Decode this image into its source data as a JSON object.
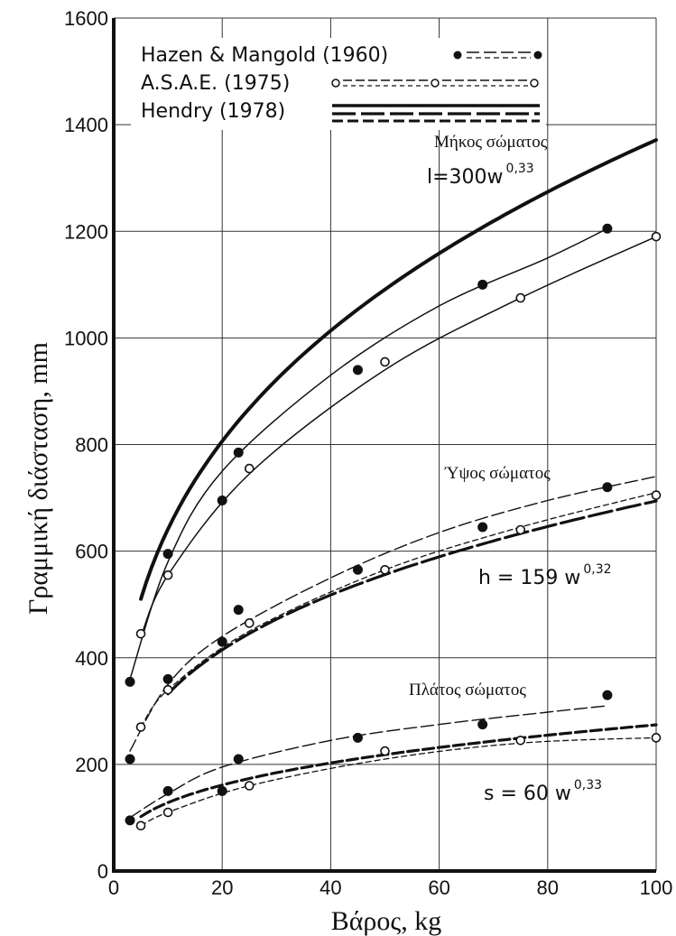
{
  "chart_data": {
    "type": "line",
    "xlabel": "Βάρος, kg",
    "ylabel": "Γραμμική διάσταση, mm",
    "xlim": [
      0,
      100
    ],
    "ylim": [
      0,
      1600
    ],
    "x_ticks": [
      0,
      20,
      40,
      60,
      80,
      100
    ],
    "y_ticks": [
      0,
      200,
      400,
      600,
      800,
      1000,
      1200,
      1400,
      1600
    ],
    "grid": true,
    "legend": {
      "placement": "top-left",
      "entries": [
        {
          "label": "Hazen & Mangold (1960)",
          "marker": "filled-circle",
          "line": "dashed"
        },
        {
          "label": "A.S.A.E. (1975)",
          "marker": "open-circle",
          "line": "dashed"
        },
        {
          "label": "Hendry (1978)",
          "marker": "none",
          "line": "thick"
        }
      ]
    },
    "annotations": [
      {
        "text": "Μήκος σώματος",
        "formula_base": "l=300w",
        "formula_exp": "0,33"
      },
      {
        "text": "Ύψος σώματος",
        "formula_base": "h = 159 w",
        "formula_exp": "0,32"
      },
      {
        "text": "Πλάτος σώματος",
        "formula_base": "s = 60 w",
        "formula_exp": "0,33"
      }
    ],
    "series": [
      {
        "source": "Hendry (1978)",
        "group": "length",
        "style": "hendry",
        "formula": {
          "a": 300,
          "b": 0.33
        },
        "x_range": [
          5,
          100
        ]
      },
      {
        "source": "Hazen & Mangold (1960)",
        "group": "length",
        "style": "hm",
        "points": [
          {
            "x": 3,
            "y": 355
          },
          {
            "x": 10,
            "y": 595
          },
          {
            "x": 20,
            "y": 695
          },
          {
            "x": 23,
            "y": 785
          },
          {
            "x": 45,
            "y": 940
          },
          {
            "x": 68,
            "y": 1100
          },
          {
            "x": 91,
            "y": 1205
          }
        ],
        "curve": [
          {
            "x": 3,
            "y": 360
          },
          {
            "x": 10,
            "y": 580
          },
          {
            "x": 20,
            "y": 750
          },
          {
            "x": 40,
            "y": 930
          },
          {
            "x": 60,
            "y": 1060
          },
          {
            "x": 80,
            "y": 1150
          },
          {
            "x": 91,
            "y": 1205
          }
        ]
      },
      {
        "source": "A.S.A.E. (1975)",
        "group": "length",
        "style": "asae",
        "points": [
          {
            "x": 5,
            "y": 445
          },
          {
            "x": 10,
            "y": 555
          },
          {
            "x": 25,
            "y": 755
          },
          {
            "x": 50,
            "y": 955
          },
          {
            "x": 75,
            "y": 1075
          },
          {
            "x": 100,
            "y": 1190
          }
        ],
        "curve": [
          {
            "x": 5,
            "y": 440
          },
          {
            "x": 10,
            "y": 555
          },
          {
            "x": 25,
            "y": 745
          },
          {
            "x": 50,
            "y": 940
          },
          {
            "x": 75,
            "y": 1075
          },
          {
            "x": 100,
            "y": 1190
          }
        ]
      },
      {
        "source": "Hendry (1978)",
        "group": "height",
        "style": "hendry",
        "formula": {
          "a": 159,
          "b": 0.32
        },
        "x_range": [
          10,
          100
        ]
      },
      {
        "source": "Hazen & Mangold (1960)",
        "group": "height",
        "style": "hm",
        "points": [
          {
            "x": 3,
            "y": 210
          },
          {
            "x": 10,
            "y": 360
          },
          {
            "x": 20,
            "y": 430
          },
          {
            "x": 23,
            "y": 490
          },
          {
            "x": 45,
            "y": 565
          },
          {
            "x": 68,
            "y": 645
          },
          {
            "x": 91,
            "y": 720
          }
        ],
        "curve": [
          {
            "x": 3,
            "y": 225
          },
          {
            "x": 10,
            "y": 350
          },
          {
            "x": 20,
            "y": 440
          },
          {
            "x": 40,
            "y": 550
          },
          {
            "x": 60,
            "y": 635
          },
          {
            "x": 80,
            "y": 695
          },
          {
            "x": 100,
            "y": 740
          }
        ]
      },
      {
        "source": "A.S.A.E. (1975)",
        "group": "height",
        "style": "asae",
        "points": [
          {
            "x": 5,
            "y": 270
          },
          {
            "x": 10,
            "y": 340
          },
          {
            "x": 25,
            "y": 465
          },
          {
            "x": 50,
            "y": 565
          },
          {
            "x": 75,
            "y": 640
          },
          {
            "x": 100,
            "y": 705
          }
        ],
        "curve": [
          {
            "x": 5,
            "y": 270
          },
          {
            "x": 10,
            "y": 340
          },
          {
            "x": 25,
            "y": 450
          },
          {
            "x": 50,
            "y": 565
          },
          {
            "x": 75,
            "y": 645
          },
          {
            "x": 100,
            "y": 710
          }
        ]
      },
      {
        "source": "Hendry (1978)",
        "group": "width",
        "style": "hendry",
        "formula": {
          "a": 60,
          "b": 0.33
        },
        "x_range": [
          5,
          100
        ]
      },
      {
        "source": "Hazen & Mangold (1960)",
        "group": "width",
        "style": "hm",
        "points": [
          {
            "x": 3,
            "y": 95
          },
          {
            "x": 10,
            "y": 150
          },
          {
            "x": 20,
            "y": 150
          },
          {
            "x": 23,
            "y": 210
          },
          {
            "x": 45,
            "y": 250
          },
          {
            "x": 68,
            "y": 275
          },
          {
            "x": 91,
            "y": 330
          }
        ],
        "curve": [
          {
            "x": 3,
            "y": 100
          },
          {
            "x": 10,
            "y": 145
          },
          {
            "x": 20,
            "y": 195
          },
          {
            "x": 40,
            "y": 245
          },
          {
            "x": 60,
            "y": 275
          },
          {
            "x": 80,
            "y": 298
          },
          {
            "x": 91,
            "y": 310
          }
        ]
      },
      {
        "source": "A.S.A.E. (1975)",
        "group": "width",
        "style": "asae",
        "points": [
          {
            "x": 5,
            "y": 85
          },
          {
            "x": 10,
            "y": 110
          },
          {
            "x": 25,
            "y": 160
          },
          {
            "x": 50,
            "y": 225
          },
          {
            "x": 75,
            "y": 245
          },
          {
            "x": 100,
            "y": 250
          }
        ],
        "curve": [
          {
            "x": 5,
            "y": 85
          },
          {
            "x": 10,
            "y": 110
          },
          {
            "x": 25,
            "y": 160
          },
          {
            "x": 50,
            "y": 210
          },
          {
            "x": 75,
            "y": 240
          },
          {
            "x": 100,
            "y": 250
          }
        ]
      }
    ]
  }
}
